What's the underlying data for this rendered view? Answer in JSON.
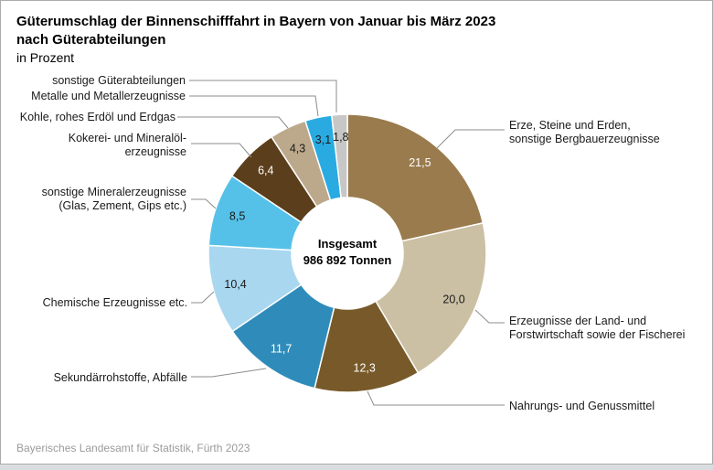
{
  "title": {
    "line1": "Güterumschlag der Binnenschifffahrt in Bayern von Januar bis März 2023",
    "line2": "nach Güterabteilungen",
    "line3": "in Prozent"
  },
  "center": {
    "line1": "Insgesamt",
    "line2": "986 892 Tonnen"
  },
  "footer": "Bayerisches Landesamt für Statistik, Fürth 2023",
  "chart_data": {
    "type": "pie",
    "subtype": "donut",
    "title": "Güterumschlag der Binnenschifffahrt in Bayern von Januar bis März 2023 nach Güterabteilungen",
    "unit": "Prozent",
    "total_label": "Insgesamt 986 892 Tonnen",
    "total_tonnen": "986 892",
    "start_angle_deg": 0,
    "direction": "clockwise",
    "segments": [
      {
        "label": "Erze, Steine und Erden, sonstige Bergbauerzeugnisse",
        "callout": "Erze, Steine und Erden,\nsonstige Bergbauerzeugnisse",
        "value": 21.5,
        "display": "21,5",
        "color": "#9A7B4D",
        "value_color": "#FFFFFF"
      },
      {
        "label": "Erzeugnisse der Land- und Forstwirtschaft sowie der Fischerei",
        "callout": "Erzeugnisse der Land- und\nForstwirtschaft sowie der Fischerei",
        "value": 20.0,
        "display": "20,0",
        "color": "#CCC0A4",
        "value_color": "#1A1A1A"
      },
      {
        "label": "Nahrungs- und Genussmittel",
        "callout": "Nahrungs- und Genussmittel",
        "value": 12.3,
        "display": "12,3",
        "color": "#785A2A",
        "value_color": "#FFFFFF"
      },
      {
        "label": "Sekundärrohstoffe, Abfälle",
        "callout": "Sekundärrohstoffe, Abfälle",
        "value": 11.7,
        "display": "11,7",
        "color": "#2F8CBA",
        "value_color": "#FFFFFF"
      },
      {
        "label": "Chemische Erzeugnisse etc.",
        "callout": "Chemische Erzeugnisse etc.",
        "value": 10.4,
        "display": "10,4",
        "color": "#A9D7F0",
        "value_color": "#1A1A1A"
      },
      {
        "label": "sonstige Mineralerzeugnisse (Glas, Zement, Gips etc.)",
        "callout": "sonstige Mineralerzeugnisse\n(Glas, Zement, Gips etc.)",
        "value": 8.5,
        "display": "8,5",
        "color": "#56C1E8",
        "value_color": "#1A1A1A"
      },
      {
        "label": "Kokerei- und Mineralölerzeugnisse",
        "callout": "Kokerei- und Mineralöl-\nerzeugnisse",
        "value": 6.4,
        "display": "6,4",
        "color": "#5B3E1B",
        "value_color": "#FFFFFF"
      },
      {
        "label": "Kohle, rohes Erdöl und Erdgas",
        "callout": "Kohle, rohes Erdöl und Erdgas",
        "value": 4.3,
        "display": "4,3",
        "color": "#BCA98B",
        "value_color": "#1A1A1A"
      },
      {
        "label": "Metalle und Metallerzeugnisse",
        "callout": "Metalle und Metallerzeugnisse",
        "value": 3.1,
        "display": "3,1",
        "color": "#29ABE2",
        "value_color": "#1A1A1A"
      },
      {
        "label": "sonstige Güterabteilungen",
        "callout": "sonstige Güterabteilungen",
        "value": 1.8,
        "display": "1,8",
        "color": "#C7C7C7",
        "value_color": "#1A1A1A"
      }
    ]
  }
}
